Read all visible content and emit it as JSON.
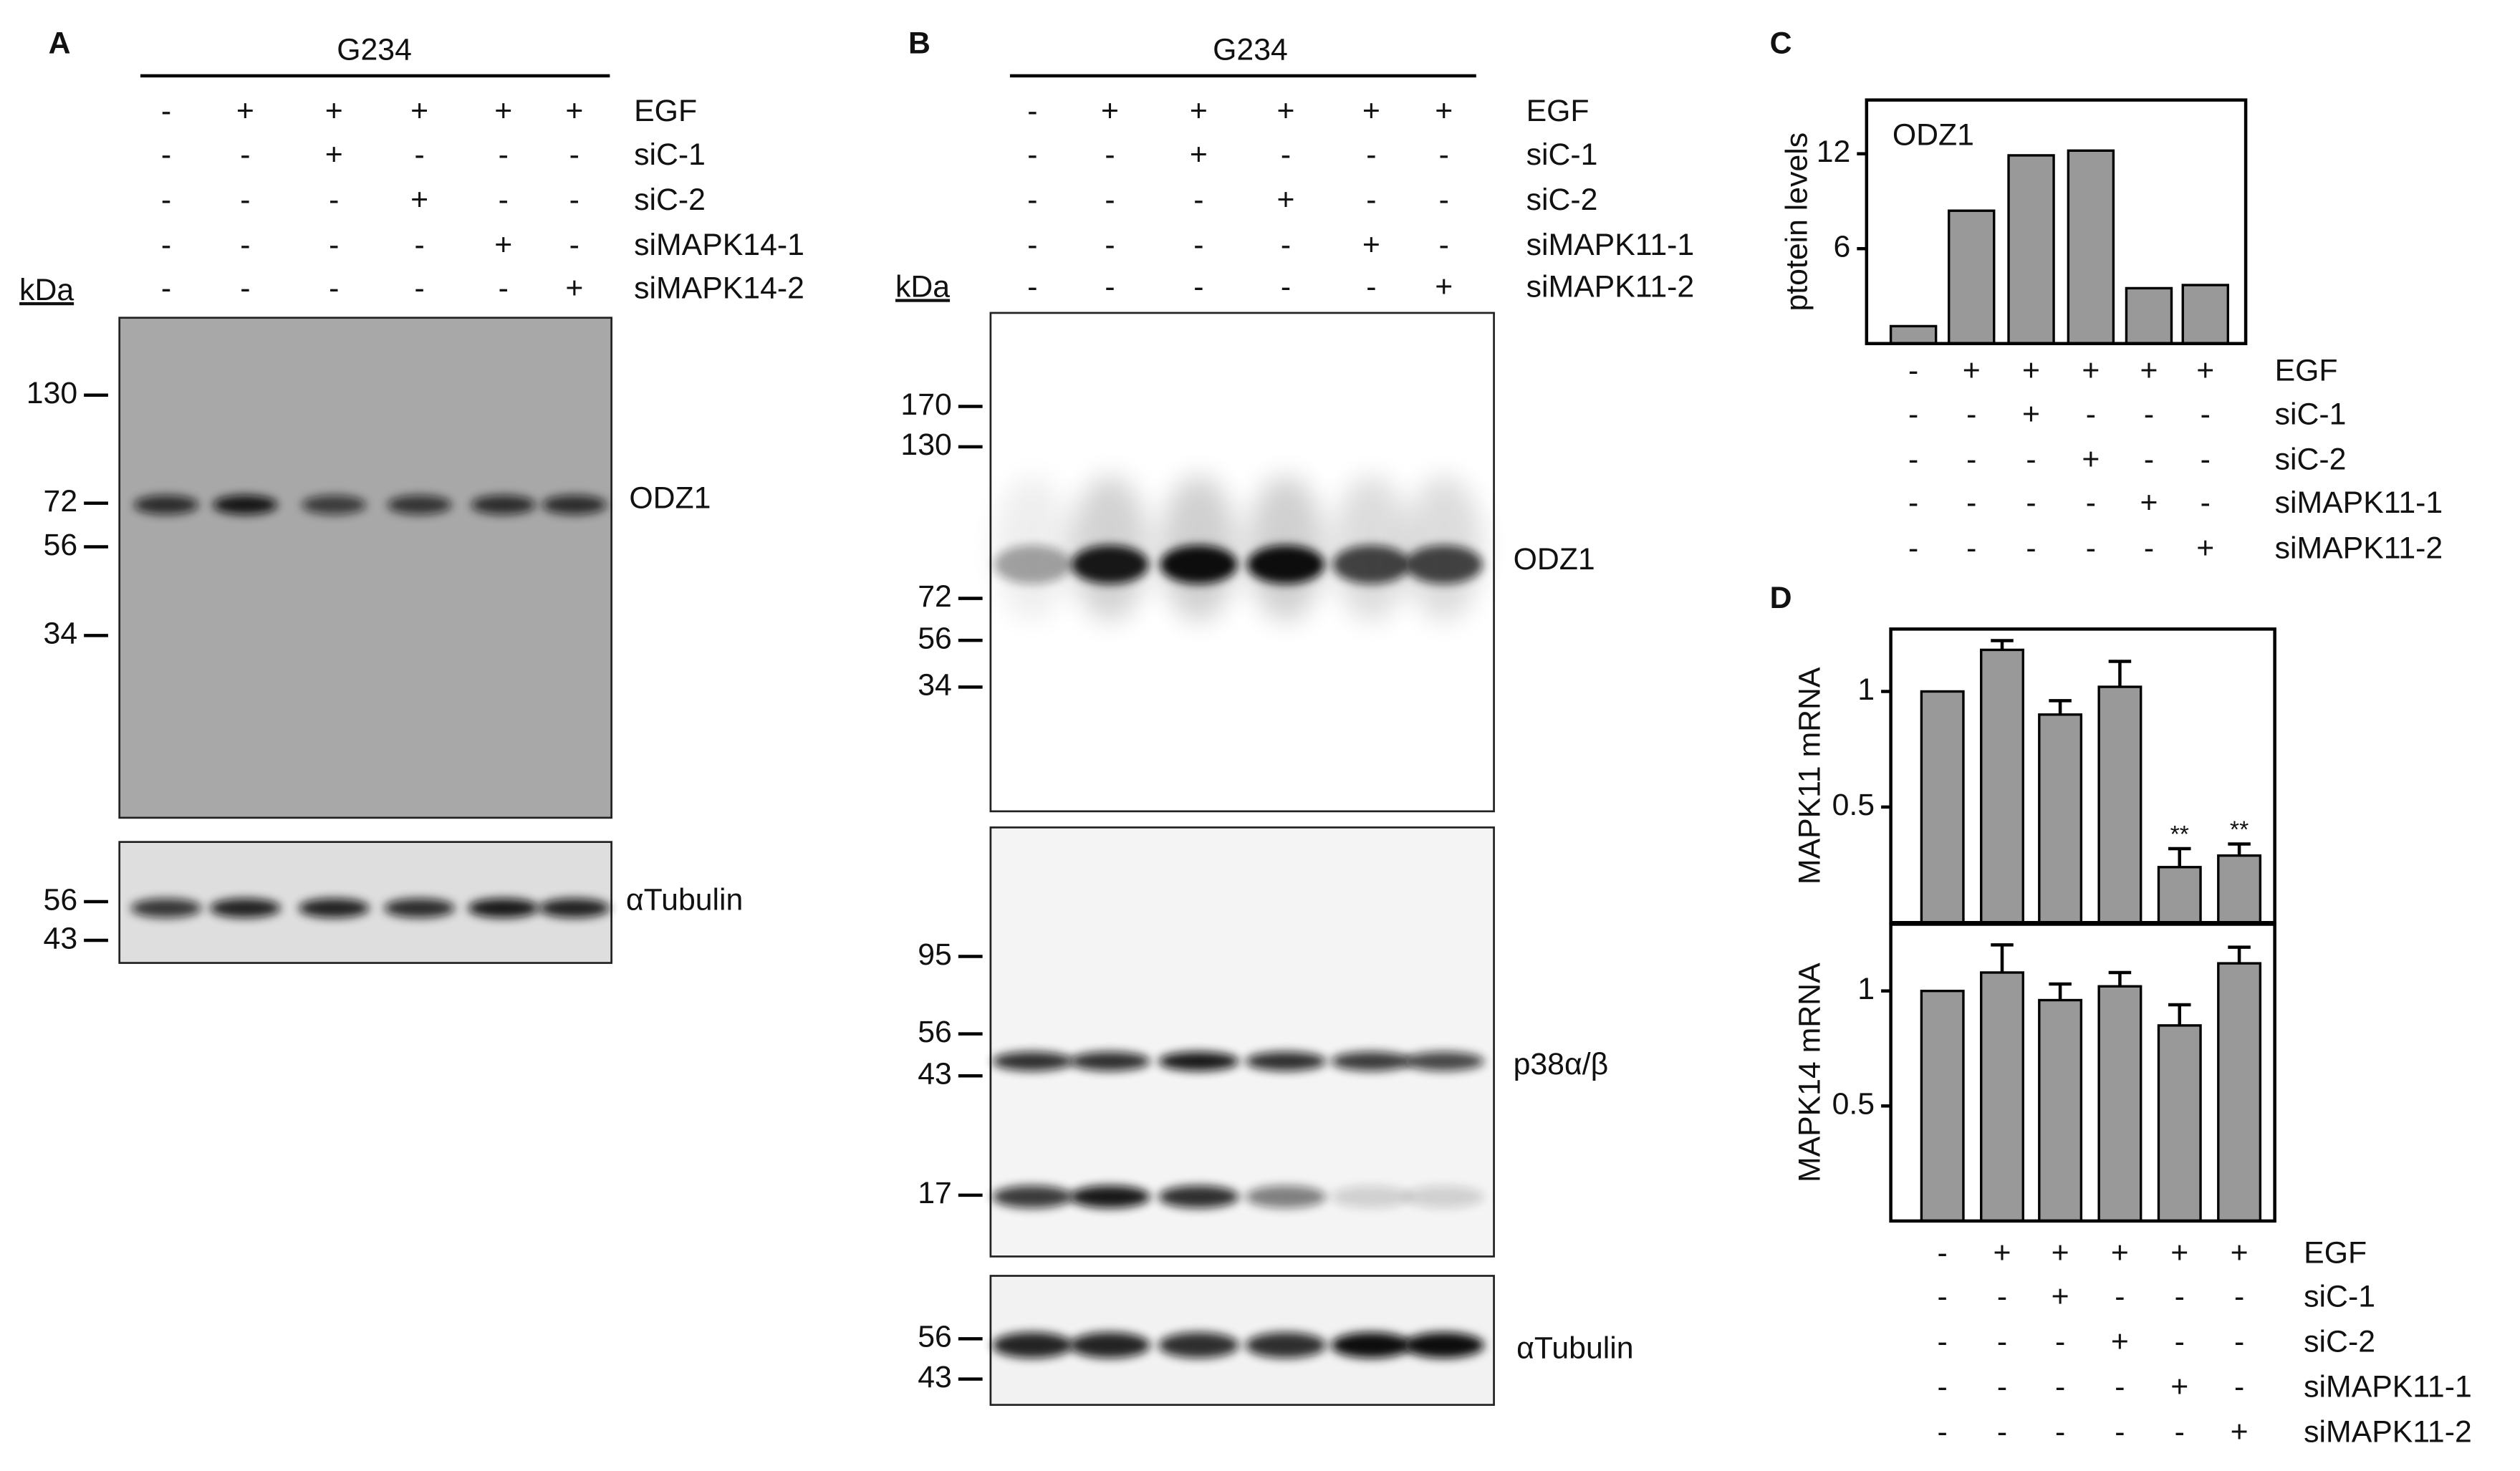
{
  "panel_a": {
    "label": "A",
    "cell_line": "G234",
    "kda": "kDa",
    "treatments": [
      {
        "name": "EGF",
        "signs": [
          "-",
          "+",
          "+",
          "+",
          "+",
          "+"
        ]
      },
      {
        "name": "siC-1",
        "signs": [
          "-",
          "-",
          "+",
          "-",
          "-",
          "-"
        ]
      },
      {
        "name": "siC-2",
        "signs": [
          "-",
          "-",
          "-",
          "+",
          "-",
          "-"
        ]
      },
      {
        "name": "siMAPK14-1",
        "signs": [
          "-",
          "-",
          "-",
          "-",
          "+",
          "-"
        ]
      },
      {
        "name": "siMAPK14-2",
        "signs": [
          "-",
          "-",
          "-",
          "-",
          "-",
          "+"
        ]
      }
    ],
    "blots": [
      {
        "name": "ODZ1",
        "markers": [
          130,
          72,
          56,
          34
        ]
      },
      {
        "name": "αTubulin",
        "markers": [
          56,
          43
        ]
      }
    ]
  },
  "panel_b": {
    "label": "B",
    "cell_line": "G234",
    "kda": "kDa",
    "treatments": [
      {
        "name": "EGF",
        "signs": [
          "-",
          "+",
          "+",
          "+",
          "+",
          "+"
        ]
      },
      {
        "name": "siC-1",
        "signs": [
          "-",
          "-",
          "+",
          "-",
          "-",
          "-"
        ]
      },
      {
        "name": "siC-2",
        "signs": [
          "-",
          "-",
          "-",
          "+",
          "-",
          "-"
        ]
      },
      {
        "name": "siMAPK11-1",
        "signs": [
          "-",
          "-",
          "-",
          "-",
          "+",
          "-"
        ]
      },
      {
        "name": "siMAPK11-2",
        "signs": [
          "-",
          "-",
          "-",
          "-",
          "-",
          "+"
        ]
      }
    ],
    "blots": [
      {
        "name": "ODZ1",
        "markers": [
          170,
          130,
          72,
          56,
          34
        ]
      },
      {
        "name": "p38α/β",
        "markers": [
          95,
          56,
          43,
          17
        ]
      },
      {
        "name": "αTubulin",
        "markers": [
          56,
          43
        ]
      }
    ]
  },
  "chart_data": [
    {
      "type": "bar",
      "label": "C",
      "title": "ODZ1",
      "ylabel": "ptotein levels",
      "ylim": [
        0,
        15.4
      ],
      "yticks": [
        6,
        12
      ],
      "color": "#999999",
      "values": [
        1.1,
        8.4,
        11.9,
        12.2,
        3.5,
        3.7
      ],
      "treatments": [
        {
          "name": "EGF",
          "signs": [
            "-",
            "+",
            "+",
            "+",
            "+",
            "+"
          ]
        },
        {
          "name": "siC-1",
          "signs": [
            "-",
            "-",
            "+",
            "-",
            "-",
            "-"
          ]
        },
        {
          "name": "siC-2",
          "signs": [
            "-",
            "-",
            "-",
            "+",
            "-",
            "-"
          ]
        },
        {
          "name": "siMAPK11-1",
          "signs": [
            "-",
            "-",
            "-",
            "-",
            "+",
            "-"
          ]
        },
        {
          "name": "siMAPK11-2",
          "signs": [
            "-",
            "-",
            "-",
            "-",
            "-",
            "+"
          ]
        }
      ]
    },
    {
      "type": "bar",
      "label": "D",
      "ylabel": "MAPK11 mRNA",
      "ylim": [
        0,
        1.27
      ],
      "yticks": [
        0.5,
        1
      ],
      "color": "#999999",
      "values": [
        1.0,
        1.18,
        0.9,
        1.02,
        0.24,
        0.29
      ],
      "errors": [
        null,
        0.04,
        0.06,
        0.11,
        0.08,
        0.05
      ],
      "annotations": [
        null,
        null,
        null,
        null,
        "**",
        "**"
      ]
    },
    {
      "type": "bar",
      "ylabel": "MAPK14 mRNA",
      "ylim": [
        0,
        1.29
      ],
      "yticks": [
        0.5,
        1
      ],
      "color": "#999999",
      "values": [
        1.0,
        1.08,
        0.96,
        1.02,
        0.85,
        1.12
      ],
      "errors": [
        null,
        0.12,
        0.07,
        0.06,
        0.09,
        0.07
      ],
      "treatments": [
        {
          "name": "EGF",
          "signs": [
            "-",
            "+",
            "+",
            "+",
            "+",
            "+"
          ]
        },
        {
          "name": "siC-1",
          "signs": [
            "-",
            "-",
            "+",
            "-",
            "-",
            "-"
          ]
        },
        {
          "name": "siC-2",
          "signs": [
            "-",
            "-",
            "-",
            "+",
            "-",
            "-"
          ]
        },
        {
          "name": "siMAPK11-1",
          "signs": [
            "-",
            "-",
            "-",
            "-",
            "+",
            "-"
          ]
        },
        {
          "name": "siMAPK11-2",
          "signs": [
            "-",
            "-",
            "-",
            "-",
            "-",
            "+"
          ]
        }
      ]
    }
  ]
}
